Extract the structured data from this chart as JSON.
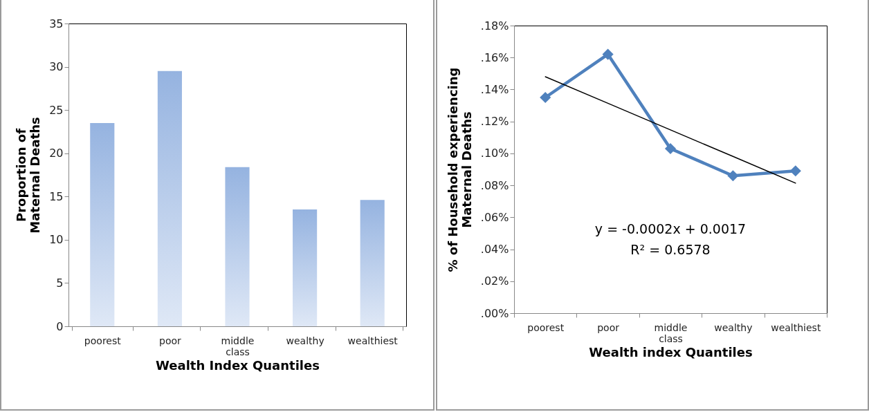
{
  "chart_data": [
    {
      "type": "bar",
      "categories": [
        "poorest",
        "poor",
        "middle class",
        "wealthy",
        "wealthiest"
      ],
      "values": [
        23.5,
        29.5,
        18.4,
        13.5,
        14.6
      ],
      "color": "#95b3e0",
      "ylim": [
        0,
        35
      ],
      "yticks": [
        0,
        5,
        10,
        15,
        20,
        25,
        30,
        35
      ],
      "ylabel": "Proportion  of Maternal Deaths",
      "xlabel": "Wealth Index Quantiles",
      "grid": false
    },
    {
      "type": "line",
      "categories": [
        "poorest",
        "poor",
        "middle class",
        "wealthy",
        "wealthiest"
      ],
      "series": [
        {
          "color": "#4f81bd",
          "values": [
            0.135,
            0.162,
            0.103,
            0.086,
            0.089
          ],
          "marker": "diamond"
        },
        {
          "color": "#000000",
          "values": [
            0.148,
            0.1314,
            0.1147,
            0.0981,
            0.0814
          ],
          "marker": "none"
        }
      ],
      "ylim": [
        0,
        0.18
      ],
      "yticks": [
        {
          "value": 0,
          "label": ".00%"
        },
        {
          "value": 0.02,
          "label": ".02%"
        },
        {
          "value": 0.04,
          "label": ".04%"
        },
        {
          "value": 0.06,
          "label": ".06%"
        },
        {
          "value": 0.08,
          "label": ".08%"
        },
        {
          "value": 0.1,
          "label": ".10%"
        },
        {
          "value": 0.12,
          "label": ".12%"
        },
        {
          "value": 0.14,
          "label": ".14%"
        },
        {
          "value": 0.16,
          "label": ".16%"
        },
        {
          "value": 0.18,
          "label": ".18%"
        }
      ],
      "ylabel": "% of Household experiencing Maternal Deaths",
      "xlabel": "Wealth index Quantiles",
      "annotations": [
        "y = -0.0002x + 0.0017",
        "R² = 0.6578"
      ],
      "grid": false
    }
  ]
}
